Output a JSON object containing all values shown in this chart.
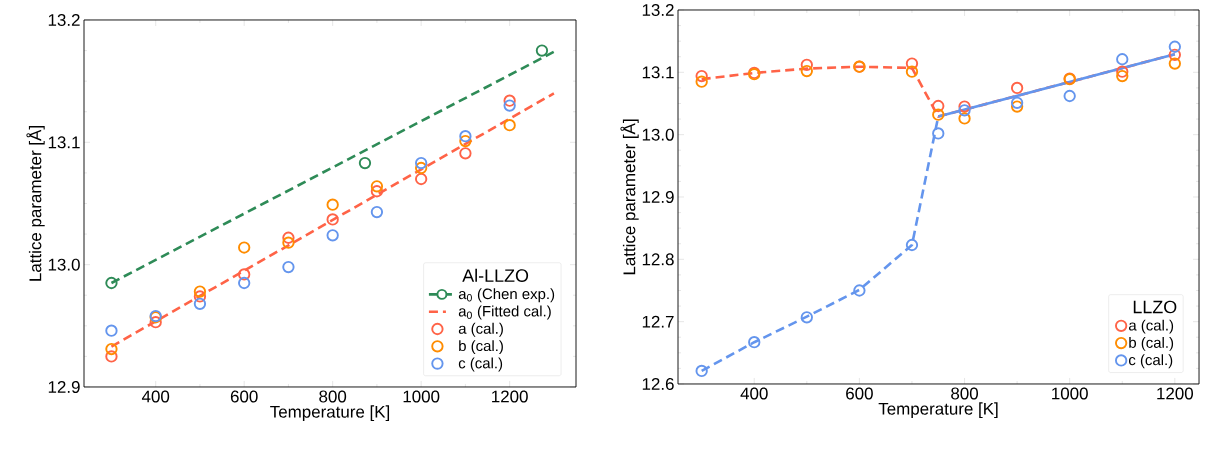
{
  "chart_data": [
    {
      "type": "scatter",
      "xlabel": "Temperature [K]",
      "ylabel": "Lattice parameter [Å]",
      "legend_title": "Al-LLZO",
      "legend": "bottom right",
      "grid": false,
      "xlim": [
        238,
        1350
      ],
      "ylim": [
        12.9,
        13.2
      ],
      "xticks": [
        400,
        600,
        800,
        1000,
        1200
      ],
      "yticks": [
        12.9,
        {
          "value": 13.0,
          "label": "13.0"
        },
        13.1,
        13.2
      ],
      "series": [
        {
          "type": "line",
          "color": "#2e8b57",
          "line_style": "dashed",
          "x": [
            300,
            1300
          ],
          "values": [
            12.985,
            13.174
          ]
        },
        {
          "name": "a$_{0}$ (Chen exp.)",
          "color": "#2e8b57",
          "marker": "circle",
          "line_style": "dashed",
          "x": [
            300,
            873,
            1273
          ],
          "values": [
            12.985,
            13.083,
            13.175
          ]
        },
        {
          "type": "line",
          "name": "a$_{0}$ (Fitted cal.)",
          "color": "#ff6347",
          "line_style": "dashed",
          "x": [
            300,
            1300
          ],
          "values": [
            12.933,
            13.14
          ]
        },
        {
          "name": "a (cal.)",
          "color": "#ff6347",
          "marker": "circle",
          "x": [
            300,
            400,
            500,
            600,
            700,
            800,
            900,
            1000,
            1100,
            1200
          ],
          "values": [
            12.925,
            12.953,
            12.974,
            12.992,
            13.022,
            13.037,
            13.06,
            13.07,
            13.091,
            13.134
          ]
        },
        {
          "name": "b (cal.)",
          "color": "#ff8c00",
          "marker": "circle",
          "x": [
            300,
            400,
            500,
            600,
            700,
            800,
            900,
            1000,
            1100,
            1200
          ],
          "values": [
            12.931,
            12.957,
            12.978,
            13.014,
            13.018,
            13.049,
            13.064,
            13.079,
            13.101,
            13.114
          ]
        },
        {
          "name": "c (cal.)",
          "color": "#6495ed",
          "marker": "circle",
          "x": [
            300,
            400,
            500,
            600,
            700,
            800,
            900,
            1000,
            1100,
            1200
          ],
          "values": [
            12.946,
            12.958,
            12.968,
            12.985,
            12.998,
            13.024,
            13.043,
            13.083,
            13.105,
            13.13
          ]
        }
      ]
    },
    {
      "type": "scatter",
      "xlabel": "Temperature [K]",
      "ylabel": "Lattice parameter [Å]",
      "legend_title": "LLZO",
      "legend": "bottom right",
      "grid": false,
      "xlim": [
        255,
        1246
      ],
      "ylim": [
        12.6,
        13.2
      ],
      "xticks": [
        400,
        600,
        800,
        1000,
        1200
      ],
      "yticks": [
        12.6,
        12.7,
        12.8,
        12.9,
        {
          "value": 13.0,
          "label": "13.0"
        },
        13.1,
        13.2
      ],
      "series": [
        {
          "type": "line",
          "color": "#ff6347",
          "line_style": "dashed",
          "x": [
            300,
            400,
            500,
            600,
            700,
            750,
            1200
          ],
          "values": [
            13.089,
            13.099,
            13.106,
            13.109,
            13.107,
            13.029,
            13.129
          ]
        },
        {
          "type": "line",
          "color": "#6495ed",
          "line_style": "dashed",
          "x": [
            300,
            400,
            500,
            600,
            700,
            750
          ],
          "values": [
            12.621,
            12.667,
            12.708,
            12.751,
            12.823,
            13.029
          ]
        },
        {
          "type": "line",
          "color": "#6495ed",
          "line_style": "solid",
          "x": [
            750,
            1200
          ],
          "values": [
            13.029,
            13.129
          ]
        },
        {
          "name": "a (cal.)",
          "color": "#ff6347",
          "marker": "circle",
          "x": [
            300,
            400,
            500,
            600,
            700,
            750,
            800,
            900,
            1000,
            1100,
            1200
          ],
          "values": [
            13.094,
            13.099,
            13.112,
            13.109,
            13.114,
            13.046,
            13.045,
            13.075,
            13.09,
            13.101,
            13.128
          ]
        },
        {
          "name": "b (cal.)",
          "color": "#ff8c00",
          "marker": "circle",
          "x": [
            300,
            400,
            500,
            600,
            700,
            750,
            800,
            900,
            1000,
            1100,
            1200
          ],
          "values": [
            13.085,
            13.097,
            13.102,
            13.109,
            13.101,
            13.032,
            13.026,
            13.045,
            13.089,
            13.094,
            13.114
          ]
        },
        {
          "name": "c (cal.)",
          "color": "#6495ed",
          "marker": "circle",
          "x": [
            300,
            400,
            500,
            600,
            700,
            750,
            800,
            900,
            1000,
            1100,
            1200
          ],
          "values": [
            12.621,
            12.667,
            12.707,
            12.75,
            12.823,
            13.002,
            13.039,
            13.051,
            13.062,
            13.121,
            13.141
          ]
        }
      ]
    }
  ]
}
